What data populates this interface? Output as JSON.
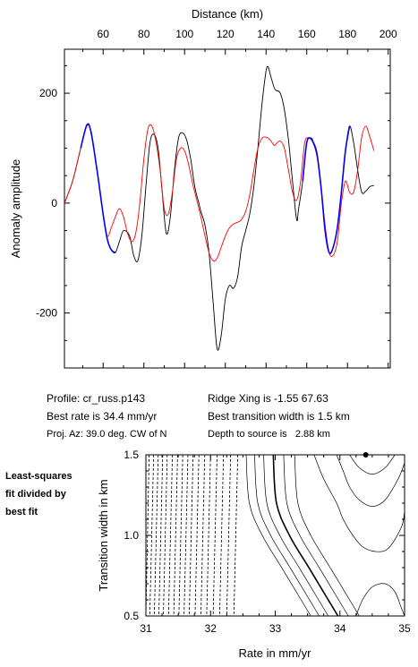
{
  "info": {
    "profile": "Profile: cr_russ.p143",
    "best_rate": "Best rate is 34.4 mm/yr",
    "proj_az": "Proj. Az: 39.0 deg. CW of N",
    "ridge_xing": "Ridge Xing is -1.55 67.63",
    "best_width": "Best transition width is 1.5 km",
    "depth": "Depth to source is   2.88 km"
  },
  "side_note": [
    "Least-squares",
    "fit divided by",
    "best fit"
  ],
  "chart_data": [
    {
      "type": "line",
      "xlabel": "Distance (km)",
      "ylabel": "Anomaly amplitude",
      "xlim": [
        41,
        201
      ],
      "ylim": [
        -300,
        280
      ],
      "xticks": [
        60,
        80,
        100,
        120,
        140,
        160,
        180,
        200
      ],
      "yticks": [
        200,
        0,
        -200
      ],
      "series": [
        {
          "color": "#000000",
          "points": [
            [
              41,
              0
            ],
            [
              45,
              40
            ],
            [
              49,
              100
            ],
            [
              52,
              142
            ],
            [
              54,
              130
            ],
            [
              57,
              60
            ],
            [
              60,
              -20
            ],
            [
              62,
              -65
            ],
            [
              64,
              -85
            ],
            [
              66,
              -90
            ],
            [
              68,
              -70
            ],
            [
              70,
              -50
            ],
            [
              73,
              -60
            ],
            [
              75,
              -95
            ],
            [
              77,
              -105
            ],
            [
              79,
              -60
            ],
            [
              81,
              30
            ],
            [
              83,
              110
            ],
            [
              85,
              125
            ],
            [
              87,
              100
            ],
            [
              89,
              20
            ],
            [
              91,
              -55
            ],
            [
              93,
              -25
            ],
            [
              95,
              60
            ],
            [
              97,
              118
            ],
            [
              99,
              128
            ],
            [
              101,
              115
            ],
            [
              103,
              80
            ],
            [
              105,
              30
            ],
            [
              107,
              0
            ],
            [
              108,
              -15
            ],
            [
              110,
              -40
            ],
            [
              112,
              -90
            ],
            [
              114,
              -180
            ],
            [
              116,
              -265
            ],
            [
              118,
              -240
            ],
            [
              120,
              -175
            ],
            [
              122,
              -150
            ],
            [
              124,
              -155
            ],
            [
              126,
              -135
            ],
            [
              128,
              -80
            ],
            [
              130,
              -50
            ],
            [
              132,
              -20
            ],
            [
              134,
              30
            ],
            [
              136,
              100
            ],
            [
              138,
              180
            ],
            [
              140,
              240
            ],
            [
              141,
              248
            ],
            [
              142,
              235
            ],
            [
              144,
              210
            ],
            [
              145,
              205
            ],
            [
              147,
              200
            ],
            [
              149,
              170
            ],
            [
              151,
              115
            ],
            [
              153,
              40
            ],
            [
              155,
              -30
            ],
            [
              156,
              -10
            ],
            [
              158,
              40
            ],
            [
              160,
              110
            ],
            [
              162,
              118
            ],
            [
              163,
              112
            ],
            [
              165,
              90
            ],
            [
              167,
              30
            ],
            [
              169,
              -50
            ],
            [
              171,
              -90
            ],
            [
              173,
              -80
            ],
            [
              175,
              -45
            ],
            [
              177,
              20
            ],
            [
              179,
              95
            ],
            [
              181,
              140
            ],
            [
              183,
              110
            ],
            [
              185,
              60
            ],
            [
              187,
              20
            ],
            [
              189,
              22
            ],
            [
              191,
              30
            ],
            [
              193,
              32
            ]
          ]
        },
        {
          "color": "#ff0000",
          "points": [
            [
              41,
              0
            ],
            [
              45,
              40
            ],
            [
              49,
              100
            ],
            [
              52,
              140
            ],
            [
              54,
              130
            ],
            [
              57,
              60
            ],
            [
              60,
              -20
            ],
            [
              62,
              -60
            ],
            [
              64,
              -45
            ],
            [
              66,
              -25
            ],
            [
              68,
              -10
            ],
            [
              70,
              -25
            ],
            [
              72,
              -55
            ],
            [
              74,
              -70
            ],
            [
              76,
              -55
            ],
            [
              78,
              0
            ],
            [
              80,
              80
            ],
            [
              82,
              135
            ],
            [
              84,
              140
            ],
            [
              86,
              110
            ],
            [
              88,
              60
            ],
            [
              90,
              -10
            ],
            [
              92,
              -20
            ],
            [
              94,
              20
            ],
            [
              96,
              80
            ],
            [
              98,
              100
            ],
            [
              100,
              95
            ],
            [
              102,
              70
            ],
            [
              104,
              35
            ],
            [
              106,
              5
            ],
            [
              108,
              -25
            ],
            [
              110,
              -60
            ],
            [
              112,
              -90
            ],
            [
              114,
              -105
            ],
            [
              116,
              -100
            ],
            [
              118,
              -80
            ],
            [
              120,
              -60
            ],
            [
              122,
              -45
            ],
            [
              124,
              -38
            ],
            [
              126,
              -35
            ],
            [
              128,
              -30
            ],
            [
              130,
              -15
            ],
            [
              132,
              15
            ],
            [
              134,
              60
            ],
            [
              136,
              100
            ],
            [
              138,
              118
            ],
            [
              140,
              120
            ],
            [
              142,
              115
            ],
            [
              144,
              105
            ],
            [
              145,
              108
            ],
            [
              147,
              113
            ],
            [
              149,
              100
            ],
            [
              151,
              60
            ],
            [
              153,
              20
            ],
            [
              155,
              5
            ],
            [
              157,
              40
            ],
            [
              159,
              110
            ],
            [
              161,
              118
            ],
            [
              163,
              110
            ],
            [
              165,
              85
            ],
            [
              167,
              30
            ],
            [
              169,
              -40
            ],
            [
              171,
              -90
            ],
            [
              173,
              -95
            ],
            [
              175,
              -70
            ],
            [
              177,
              0
            ],
            [
              179,
              40
            ],
            [
              181,
              20
            ],
            [
              183,
              20
            ],
            [
              185,
              60
            ],
            [
              187,
              120
            ],
            [
              189,
              140
            ],
            [
              191,
              120
            ],
            [
              193,
              95
            ]
          ]
        },
        {
          "color": "#0000ff",
          "points": [
            [
              49,
              100
            ],
            [
              52,
              142
            ],
            [
              54,
              130
            ],
            [
              57,
              60
            ],
            [
              60,
              -20
            ],
            [
              62,
              -65
            ],
            [
              64,
              -85
            ],
            [
              66,
              -90
            ]
          ]
        },
        {
          "color": "#0000ff",
          "points": [
            [
              158,
              40
            ],
            [
              160,
              110
            ],
            [
              162,
              118
            ],
            [
              163,
              112
            ],
            [
              165,
              90
            ],
            [
              167,
              30
            ],
            [
              169,
              -50
            ],
            [
              171,
              -90
            ],
            [
              173,
              -80
            ],
            [
              175,
              -45
            ],
            [
              177,
              20
            ],
            [
              179,
              95
            ],
            [
              181,
              140
            ]
          ]
        }
      ]
    },
    {
      "type": "contour",
      "xlabel": "Rate in mm/yr",
      "ylabel": "Transition width in km",
      "xlim": [
        31,
        35
      ],
      "ylim": [
        0.5,
        1.5
      ],
      "xticks": [
        31,
        32,
        33,
        34,
        35
      ],
      "yticks": [
        0.5,
        1.0,
        1.5
      ],
      "best_point": [
        34.4,
        1.5
      ],
      "dashed_x_at_top": [
        31.05,
        31.12,
        31.19,
        31.26,
        31.33,
        31.41,
        31.49,
        31.57,
        31.65,
        31.73,
        31.82,
        31.91,
        32.0,
        32.1,
        32.2,
        32.31,
        32.42
      ],
      "solid_x_at_top": [
        32.55,
        32.68,
        32.82,
        32.97,
        33.13,
        33.3
      ],
      "bold_x_at_top": 32.97,
      "right_contours": [
        [
          [
            33.6,
            1.5
          ],
          [
            33.75,
            1.35
          ],
          [
            33.95,
            1.2
          ],
          [
            34.05,
            1.1
          ],
          [
            34.2,
            1.0
          ],
          [
            34.35,
            0.93
          ],
          [
            34.55,
            0.9
          ],
          [
            34.75,
            0.92
          ],
          [
            34.95,
            1.05
          ],
          [
            35,
            1.15
          ]
        ],
        [
          [
            33.95,
            1.5
          ],
          [
            34.05,
            1.4
          ],
          [
            34.15,
            1.3
          ],
          [
            34.3,
            1.22
          ],
          [
            34.5,
            1.18
          ],
          [
            34.7,
            1.22
          ],
          [
            34.9,
            1.35
          ],
          [
            35,
            1.45
          ]
        ],
        [
          [
            34.15,
            1.5
          ],
          [
            34.3,
            1.42
          ],
          [
            34.5,
            1.38
          ],
          [
            34.7,
            1.42
          ],
          [
            34.85,
            1.5
          ]
        ],
        [
          [
            34.25,
            0.5
          ],
          [
            34.35,
            0.6
          ],
          [
            34.5,
            0.68
          ],
          [
            34.7,
            0.7
          ],
          [
            34.85,
            0.65
          ],
          [
            34.95,
            0.55
          ],
          [
            35,
            0.5
          ]
        ]
      ]
    }
  ]
}
